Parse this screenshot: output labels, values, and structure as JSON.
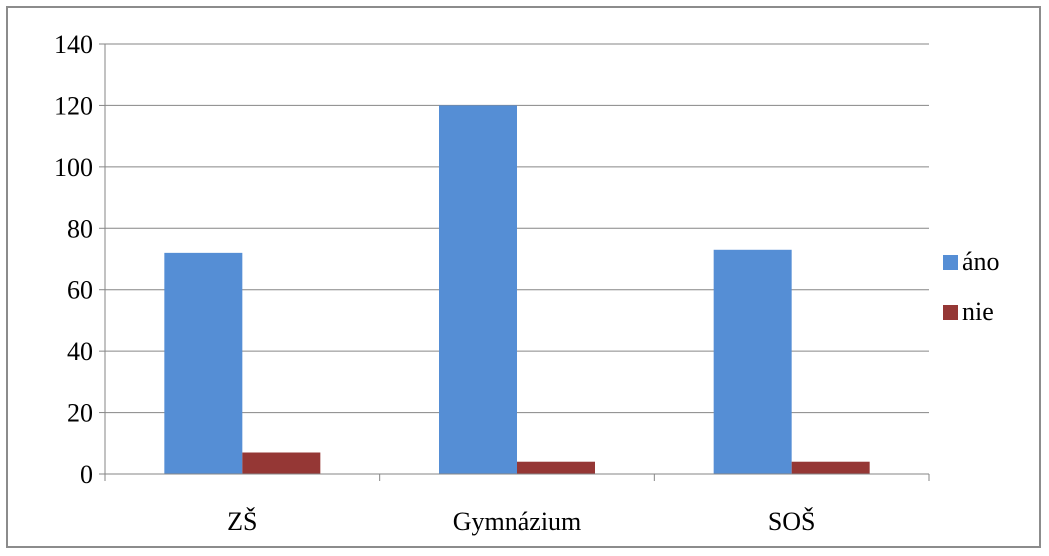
{
  "chart_data": {
    "type": "bar",
    "categories": [
      "ZŠ",
      "Gymnázium",
      "SOŠ"
    ],
    "series": [
      {
        "name": "áno",
        "values": [
          72,
          120,
          73
        ],
        "color": "#558ED5"
      },
      {
        "name": "nie",
        "values": [
          7,
          4,
          4
        ],
        "color": "#953735"
      }
    ],
    "title": "",
    "xlabel": "",
    "ylabel": "",
    "ylim": [
      0,
      140
    ],
    "yticks": [
      0,
      20,
      40,
      60,
      80,
      100,
      120,
      140
    ],
    "grid": true,
    "legend_position": "right"
  }
}
